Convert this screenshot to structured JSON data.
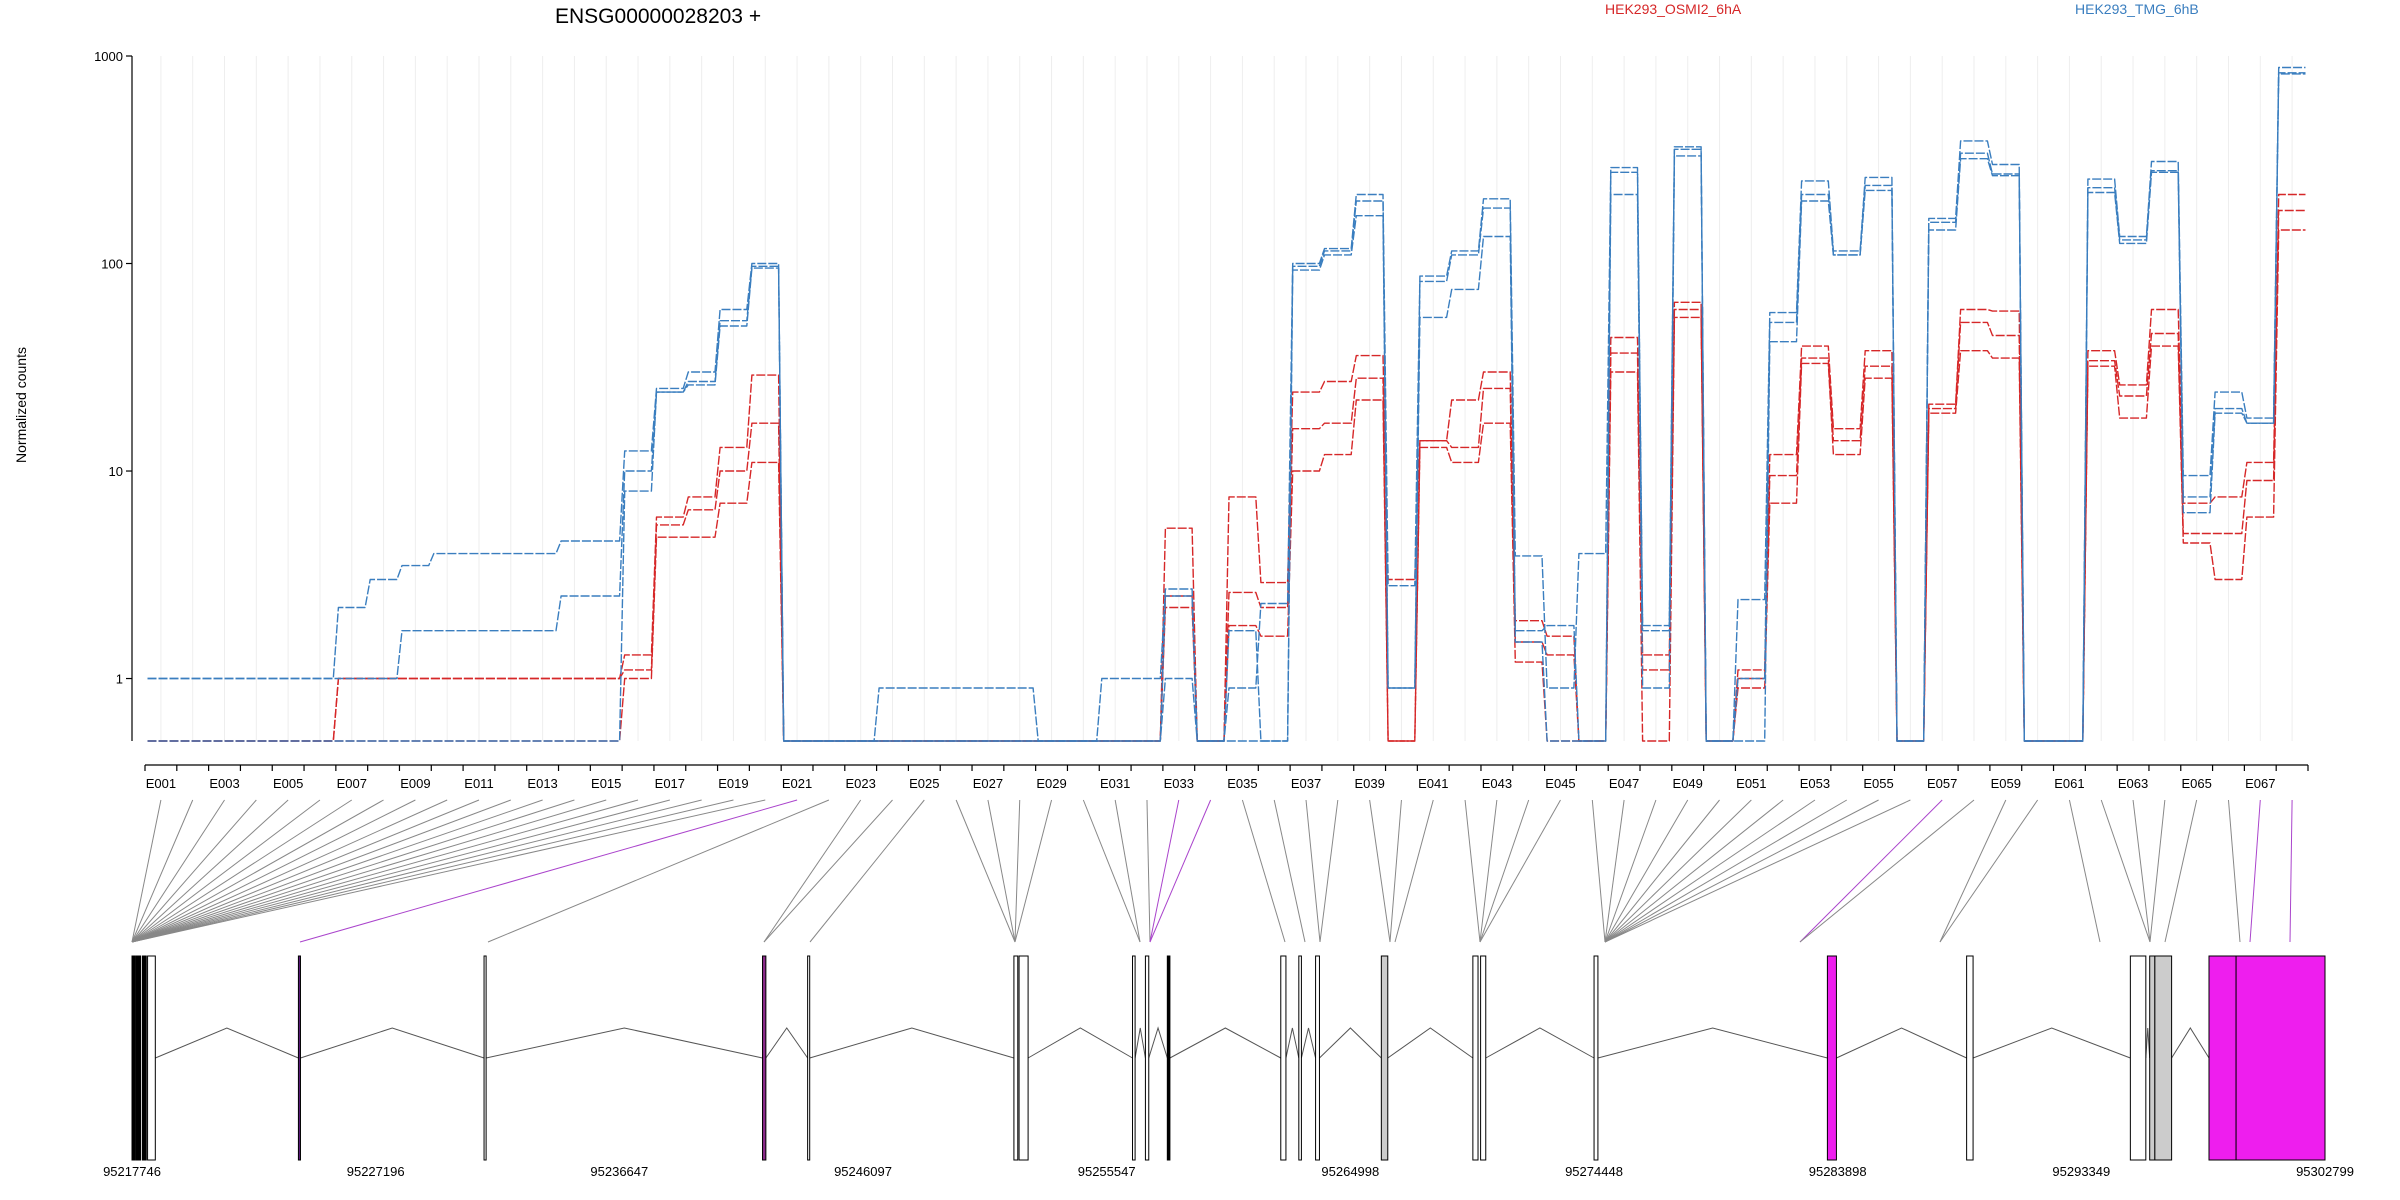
{
  "chart_data": {
    "type": "line",
    "title": "ENSG00000028203 +",
    "ylabel": "Normalized counts",
    "xlabel": "",
    "y_scale": "log",
    "ylim": [
      0.5,
      1000
    ],
    "y_ticks": [
      1,
      10,
      100,
      1000
    ],
    "y_tick_labels": [
      "1",
      "10",
      "100",
      "1000"
    ],
    "grid": "vertical lines at each exon",
    "legend_placement": "top-right",
    "exons": [
      "E001",
      "E002",
      "E003",
      "E004",
      "E005",
      "E006",
      "E007",
      "E008",
      "E009",
      "E010",
      "E011",
      "E012",
      "E013",
      "E014",
      "E015",
      "E016",
      "E017",
      "E018",
      "E019",
      "E020",
      "E021",
      "E022",
      "E023",
      "E024",
      "E025",
      "E026",
      "E027",
      "E028",
      "E029",
      "E030",
      "E031",
      "E032",
      "E033",
      "E034",
      "E035",
      "E036",
      "E037",
      "E038",
      "E039",
      "E040",
      "E041",
      "E042",
      "E043",
      "E044",
      "E045",
      "E046",
      "E047",
      "E048",
      "E049",
      "E050",
      "E051",
      "E052",
      "E053",
      "E054",
      "E055",
      "E056",
      "E057",
      "E058",
      "E059",
      "E060",
      "E061",
      "E062",
      "E063",
      "E064",
      "E065",
      "E066",
      "E067",
      "E068"
    ],
    "x_tick_labels": [
      "E001",
      "E003",
      "E005",
      "E007",
      "E009",
      "E011",
      "E013",
      "E015",
      "E017",
      "E019",
      "E021",
      "E023",
      "E025",
      "E027",
      "E029",
      "E031",
      "E033",
      "E035",
      "E037",
      "E039",
      "E041",
      "E043",
      "E045",
      "E047",
      "E049",
      "E051",
      "E053",
      "E055",
      "E057",
      "E059",
      "E061",
      "E063",
      "E065",
      "E067"
    ],
    "series": [
      {
        "name": "HEK293_OSMI2_6hA",
        "color": "#d62728",
        "replicates": [
          [
            0.5,
            0.5,
            0.5,
            0.5,
            0.5,
            0.5,
            0.5,
            0.5,
            0.5,
            0.5,
            0.5,
            0.5,
            0.5,
            0.5,
            0.5,
            1,
            4.8,
            4.8,
            7,
            11,
            0.5,
            0.5,
            0.5,
            0.5,
            0.5,
            0.5,
            0.5,
            0.5,
            0.5,
            0.5,
            0.5,
            0.5,
            2.2,
            0.5,
            1.8,
            1.6,
            10,
            12,
            22,
            0.5,
            13,
            11,
            17,
            1.2,
            0.5,
            0.5,
            30,
            0.5,
            55,
            0.5,
            0.9,
            7,
            33,
            12,
            28,
            0.5,
            19,
            38,
            35,
            0.5,
            0.5,
            32,
            18,
            40,
            4.5,
            3,
            6,
            145
          ],
          [
            0.5,
            0.5,
            0.5,
            0.5,
            0.5,
            0.5,
            1,
            1,
            1,
            1,
            1,
            1,
            1,
            1,
            1,
            1.1,
            5.5,
            6.5,
            10,
            17,
            0.5,
            0.5,
            0.5,
            0.5,
            0.5,
            0.5,
            0.5,
            0.5,
            0.5,
            0.5,
            0.5,
            0.5,
            2.5,
            0.5,
            2.6,
            2.2,
            16,
            17,
            28,
            0.5,
            14,
            13,
            25,
            1.5,
            1.3,
            0.5,
            37,
            1.1,
            60,
            0.5,
            1,
            9.5,
            35,
            14,
            32,
            0.5,
            20,
            52,
            45,
            0.5,
            0.5,
            34,
            23,
            46,
            5,
            5,
            9,
            180
          ],
          [
            0.5,
            0.5,
            0.5,
            0.5,
            0.5,
            0.5,
            1,
            1,
            1,
            1,
            1,
            1,
            1,
            1,
            1,
            1.3,
            6,
            7.5,
            13,
            29,
            0.5,
            0.5,
            0.5,
            0.5,
            0.5,
            0.5,
            0.5,
            0.5,
            0.5,
            0.5,
            0.5,
            0.5,
            5.3,
            0.5,
            7.5,
            2.9,
            24,
            27,
            36,
            3,
            14,
            22,
            30,
            1.9,
            1.6,
            0.5,
            44,
            1.3,
            65,
            0.5,
            1.1,
            12,
            40,
            16,
            38,
            0.5,
            21,
            60,
            59,
            0.5,
            0.5,
            38,
            26,
            60,
            7,
            7.5,
            11,
            215
          ]
        ]
      },
      {
        "name": "HEK293_TMG_6hB",
        "color": "#3a7ebf",
        "replicates": [
          [
            0.5,
            0.5,
            0.5,
            0.5,
            0.5,
            0.5,
            0.5,
            0.5,
            0.5,
            0.5,
            0.5,
            0.5,
            0.5,
            0.5,
            0.5,
            8,
            24,
            26,
            50,
            95,
            0.5,
            0.5,
            0.5,
            0.5,
            0.5,
            0.5,
            0.5,
            0.5,
            0.5,
            0.5,
            0.5,
            0.5,
            1,
            0.5,
            0.5,
            0.5,
            93,
            110,
            170,
            0.9,
            55,
            75,
            135,
            1.5,
            0.5,
            0.5,
            215,
            0.9,
            330,
            0.5,
            0.5,
            42,
            200,
            110,
            225,
            0.5,
            145,
            320,
            265,
            0.5,
            0.5,
            220,
            125,
            275,
            6.3,
            19,
            17,
            820
          ],
          [
            1,
            1,
            1,
            1,
            1,
            1,
            1,
            1,
            1.7,
            1.7,
            1.7,
            1.7,
            1.7,
            2.5,
            2.5,
            10,
            24,
            27,
            53,
            97,
            0.5,
            0.5,
            0.5,
            0.5,
            0.5,
            0.5,
            0.5,
            0.5,
            0.5,
            0.5,
            0.5,
            0.5,
            2.5,
            0.5,
            1.7,
            0.5,
            97,
            115,
            200,
            0.9,
            82,
            110,
            185,
            1.7,
            1.8,
            0.5,
            275,
            1.7,
            355,
            0.5,
            1,
            52,
            215,
            110,
            238,
            0.5,
            158,
            340,
            270,
            0.5,
            0.5,
            232,
            130,
            280,
            7.5,
            20,
            17,
            830
          ],
          [
            1,
            1,
            1,
            1,
            1,
            1,
            2.2,
            3,
            3.5,
            4,
            4,
            4,
            4,
            4.6,
            4.6,
            12.5,
            25,
            30,
            60,
            100,
            0.5,
            0.5,
            0.5,
            0.9,
            0.9,
            0.9,
            0.9,
            0.9,
            0.5,
            0.5,
            1,
            1,
            2.7,
            0.5,
            0.9,
            2.3,
            100,
            118,
            215,
            2.8,
            87,
            115,
            205,
            3.9,
            0.9,
            4,
            290,
            1.8,
            365,
            0.5,
            2.4,
            58,
            250,
            115,
            260,
            0.5,
            165,
            390,
            300,
            0.5,
            0.5,
            255,
            135,
            310,
            9.5,
            24,
            18,
            880
          ]
        ]
      }
    ],
    "genome_coordinates": {
      "tick_labels": [
        "95217746",
        "95227196",
        "95236647",
        "95246097",
        "95255547",
        "95264998",
        "95274448",
        "95283898",
        "95293349",
        "95302799"
      ]
    }
  }
}
